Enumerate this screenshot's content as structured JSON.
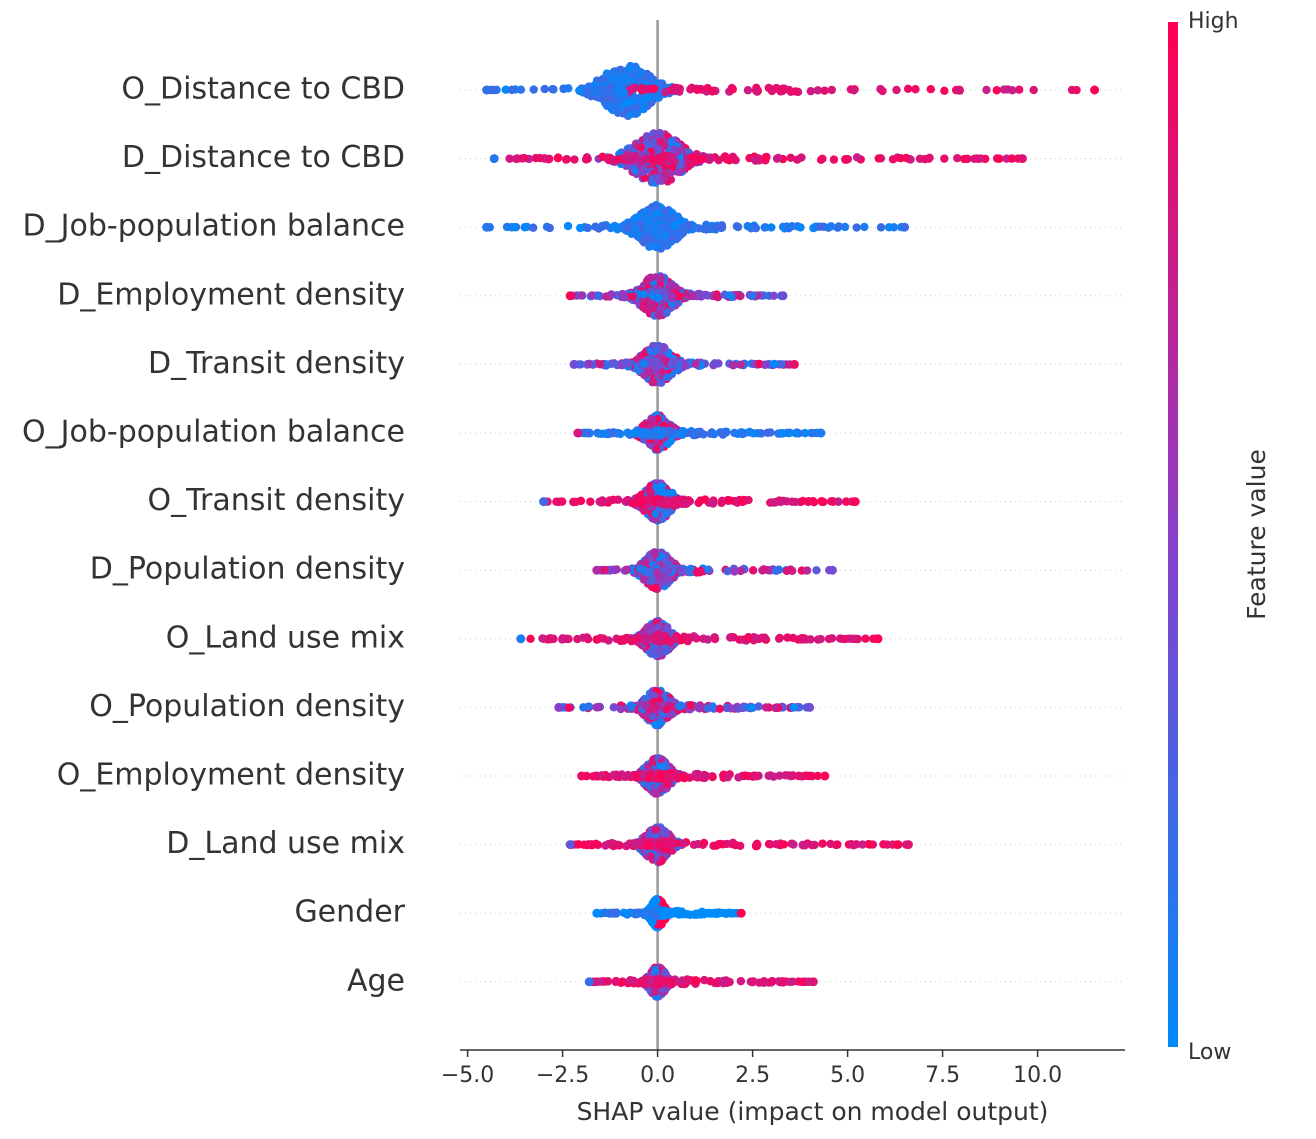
{
  "chart_data": {
    "type": "scatter",
    "subtype": "shap-beeswarm",
    "title": "",
    "xlabel": "SHAP value (impact on model output)",
    "xlim": [
      -5.2,
      12.3
    ],
    "xticks": [
      -5.0,
      -2.5,
      0.0,
      2.5,
      5.0,
      7.5,
      10.0
    ],
    "xtick_labels": [
      "−5.0",
      "−2.5",
      "0.0",
      "2.5",
      "5.0",
      "7.5",
      "10.0"
    ],
    "colorbar": {
      "label": "Feature value",
      "high_label": "High",
      "low_label": "Low",
      "high_color": "#ff0052",
      "low_color": "#008bfb"
    },
    "grid": "dotted horizontal row lines",
    "features": [
      {
        "name": "O_Distance to CBD",
        "min": -4.5,
        "max": 11.5,
        "center": -0.8,
        "width": 0.9,
        "tail_color": "high",
        "body_color": "low"
      },
      {
        "name": "D_Distance to CBD",
        "min": -4.3,
        "max": 9.6,
        "center": 0.0,
        "width": 0.9,
        "tail_color": "high",
        "body_color": "mixed"
      },
      {
        "name": "D_Job-population balance",
        "min": -4.5,
        "max": 6.5,
        "center": 0.0,
        "width": 0.7,
        "tail_color": "low",
        "body_color": "low"
      },
      {
        "name": "D_Employment density",
        "min": -2.3,
        "max": 3.3,
        "center": 0.0,
        "width": 0.6,
        "tail_color": "mixed",
        "body_color": "mixed"
      },
      {
        "name": "D_Transit density",
        "min": -2.2,
        "max": 3.6,
        "center": 0.0,
        "width": 0.55,
        "tail_color": "mixed",
        "body_color": "mixed"
      },
      {
        "name": "O_Job-population balance",
        "min": -2.1,
        "max": 4.3,
        "center": 0.0,
        "width": 0.45,
        "tail_color": "low",
        "body_color": "mixed"
      },
      {
        "name": "O_Transit density",
        "min": -3.0,
        "max": 5.2,
        "center": 0.0,
        "width": 0.5,
        "tail_color": "high",
        "body_color": "mixed"
      },
      {
        "name": "D_Population density",
        "min": -1.6,
        "max": 4.6,
        "center": 0.0,
        "width": 0.5,
        "tail_color": "mixed",
        "body_color": "mixed"
      },
      {
        "name": "O_Land use mix",
        "min": -3.6,
        "max": 5.8,
        "center": 0.0,
        "width": 0.45,
        "tail_color": "high",
        "body_color": "mixed"
      },
      {
        "name": "O_Population density",
        "min": -2.6,
        "max": 4.0,
        "center": 0.0,
        "width": 0.45,
        "tail_color": "mixed",
        "body_color": "mixed"
      },
      {
        "name": "O_Employment density",
        "min": -2.0,
        "max": 4.4,
        "center": 0.0,
        "width": 0.45,
        "tail_color": "high",
        "body_color": "mixed"
      },
      {
        "name": "D_Land use mix",
        "min": -2.3,
        "max": 6.6,
        "center": 0.0,
        "width": 0.45,
        "tail_color": "high",
        "body_color": "mixed"
      },
      {
        "name": "Gender",
        "min": -1.6,
        "max": 2.2,
        "center": 0.0,
        "width": 0.25,
        "tail_color": "split",
        "body_color": "split"
      },
      {
        "name": "Age",
        "min": -1.8,
        "max": 4.1,
        "center": 0.0,
        "width": 0.3,
        "tail_color": "high",
        "body_color": "mixed"
      }
    ]
  }
}
